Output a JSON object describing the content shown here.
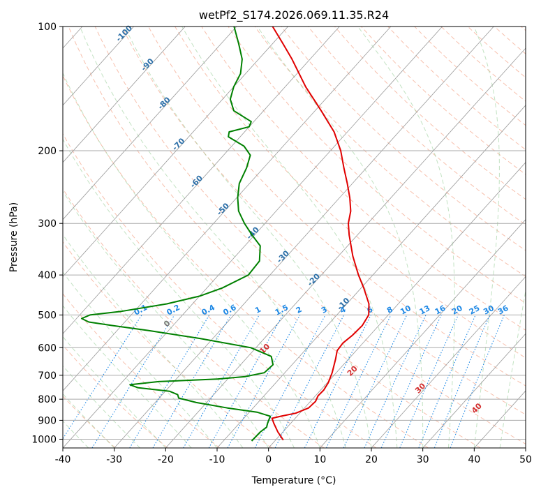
{
  "chart_data": {
    "type": "line",
    "title": "wetPf2_S174.2026.069.11.35.R24",
    "xlabel": "Temperature (°C)",
    "ylabel": "Pressure (hPa)",
    "xlim": [
      -40,
      50
    ],
    "ylim": [
      1050,
      100
    ],
    "y_scale": "log",
    "skew": true,
    "grid": true,
    "x_ticks": [
      -40,
      -30,
      -20,
      -10,
      0,
      10,
      20,
      30,
      40,
      50
    ],
    "y_ticks": [
      100,
      200,
      300,
      400,
      500,
      600,
      700,
      800,
      900,
      1000
    ],
    "series": [
      {
        "color": "#e00000",
        "points": [
          [
            1005,
            1.5
          ],
          [
            960,
            -1.0
          ],
          [
            915,
            -3.3
          ],
          [
            890,
            -4.5
          ],
          [
            880,
            -3.2
          ],
          [
            865,
            -0.8
          ],
          [
            840,
            0.8
          ],
          [
            810,
            1.0
          ],
          [
            785,
            0.5
          ],
          [
            760,
            0.6
          ],
          [
            730,
            0.2
          ],
          [
            690,
            -0.8
          ],
          [
            640,
            -2.5
          ],
          [
            610,
            -3.7
          ],
          [
            585,
            -3.9
          ],
          [
            560,
            -3.4
          ],
          [
            530,
            -3.2
          ],
          [
            500,
            -3.8
          ],
          [
            470,
            -5.7
          ],
          [
            430,
            -9.5
          ],
          [
            400,
            -12.8
          ],
          [
            360,
            -17.2
          ],
          [
            320,
            -21.6
          ],
          [
            300,
            -23.8
          ],
          [
            280,
            -25.5
          ],
          [
            260,
            -28.0
          ],
          [
            240,
            -31.0
          ],
          [
            220,
            -34.4
          ],
          [
            200,
            -38.0
          ],
          [
            180,
            -42.6
          ],
          [
            160,
            -48.8
          ],
          [
            140,
            -56.0
          ],
          [
            120,
            -63.5
          ],
          [
            110,
            -68.0
          ],
          [
            100,
            -73.0
          ]
        ]
      },
      {
        "color": "#008000",
        "points": [
          [
            1010,
            -4.5
          ],
          [
            960,
            -4.4
          ],
          [
            935,
            -4.0
          ],
          [
            915,
            -4.5
          ],
          [
            900,
            -4.8
          ],
          [
            880,
            -5.2
          ],
          [
            860,
            -8.5
          ],
          [
            840,
            -15.0
          ],
          [
            815,
            -22.0
          ],
          [
            795,
            -26.2
          ],
          [
            780,
            -27.0
          ],
          [
            765,
            -29.2
          ],
          [
            750,
            -36.0
          ],
          [
            738,
            -38.0
          ],
          [
            725,
            -33.0
          ],
          [
            715,
            -22.0
          ],
          [
            705,
            -17.0
          ],
          [
            690,
            -14.0
          ],
          [
            660,
            -13.7
          ],
          [
            630,
            -15.5
          ],
          [
            600,
            -21.0
          ],
          [
            570,
            -32.5
          ],
          [
            545,
            -44.0
          ],
          [
            530,
            -52.0
          ],
          [
            520,
            -57.0
          ],
          [
            510,
            -59.0
          ],
          [
            500,
            -58.0
          ],
          [
            490,
            -52.5
          ],
          [
            470,
            -45.0
          ],
          [
            450,
            -40.0
          ],
          [
            430,
            -37.0
          ],
          [
            400,
            -34.2
          ],
          [
            370,
            -34.5
          ],
          [
            340,
            -37.0
          ],
          [
            320,
            -40.5
          ],
          [
            300,
            -44.0
          ],
          [
            280,
            -47.3
          ],
          [
            260,
            -49.8
          ],
          [
            240,
            -52.0
          ],
          [
            220,
            -53.3
          ],
          [
            205,
            -54.8
          ],
          [
            195,
            -57.6
          ],
          [
            185,
            -62.3
          ],
          [
            180,
            -63.0
          ],
          [
            175,
            -60.0
          ],
          [
            170,
            -60.5
          ],
          [
            160,
            -65.8
          ],
          [
            150,
            -68.5
          ],
          [
            140,
            -70.0
          ],
          [
            130,
            -71.0
          ],
          [
            120,
            -73.2
          ],
          [
            110,
            -76.6
          ],
          [
            100,
            -80.5
          ]
        ]
      }
    ],
    "dry_adiabat_labels": [
      -100,
      -90,
      -80,
      -70,
      -60,
      -50,
      -40,
      -30,
      -20,
      -10
    ],
    "moist_adiabat_labels": [
      0,
      10,
      20,
      30,
      40
    ],
    "mixing_ratio_labels": [
      0.1,
      0.2,
      0.4,
      0.6,
      1,
      1.5,
      2,
      3,
      4,
      6,
      8,
      10,
      13,
      16,
      20,
      25,
      30,
      36
    ]
  }
}
